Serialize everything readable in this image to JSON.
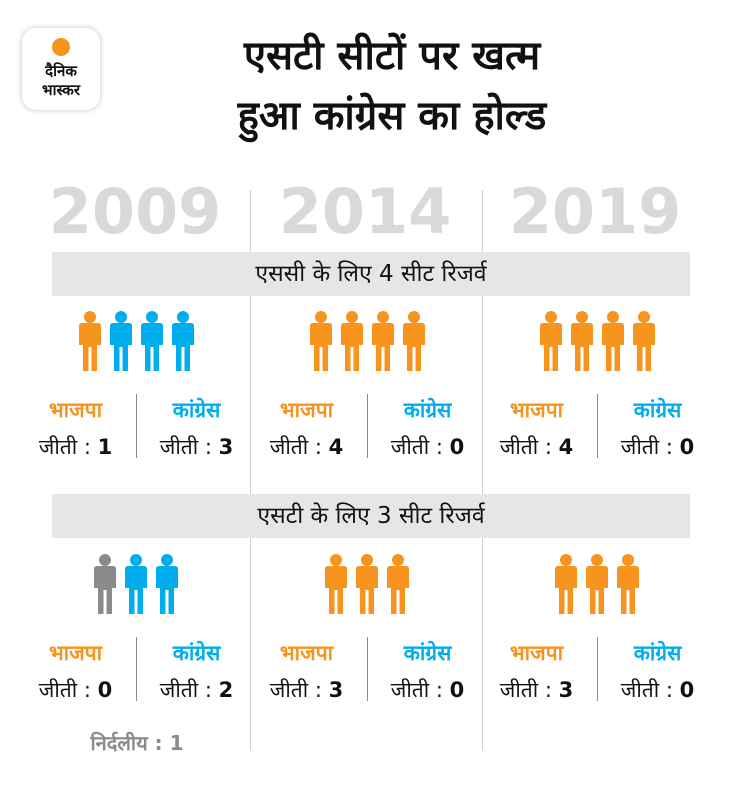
{
  "brand": {
    "line1": "दैनिक",
    "line2": "भास्कर"
  },
  "title": {
    "line1": "एसटी सीटों पर खत्म",
    "line2": "हुआ कांग्रेस का होल्ड"
  },
  "labels": {
    "bjp": "भाजपा",
    "congress": "कांग्रेस",
    "won_prefix": "जीती : "
  },
  "colors": {
    "bjp": "#f7941d",
    "congress": "#00aeef",
    "independent": "#8a8a8a"
  },
  "chart_data": {
    "type": "table",
    "years": [
      "2009",
      "2014",
      "2019"
    ],
    "sections": [
      {
        "title": "एससी के लिए 4 सीट रिजर्व",
        "results": [
          {
            "year": "2009",
            "bjp": 1,
            "congress": 3,
            "independent": 0
          },
          {
            "year": "2014",
            "bjp": 4,
            "congress": 0,
            "independent": 0
          },
          {
            "year": "2019",
            "bjp": 4,
            "congress": 0,
            "independent": 0
          }
        ]
      },
      {
        "title": "एसटी के लिए 3 सीट रिजर्व",
        "results": [
          {
            "year": "2009",
            "bjp": 0,
            "congress": 2,
            "independent": 1
          },
          {
            "year": "2014",
            "bjp": 3,
            "congress": 0,
            "independent": 0
          },
          {
            "year": "2019",
            "bjp": 3,
            "congress": 0,
            "independent": 0
          }
        ]
      }
    ],
    "independent_note": "निर्दलीय : 1"
  }
}
